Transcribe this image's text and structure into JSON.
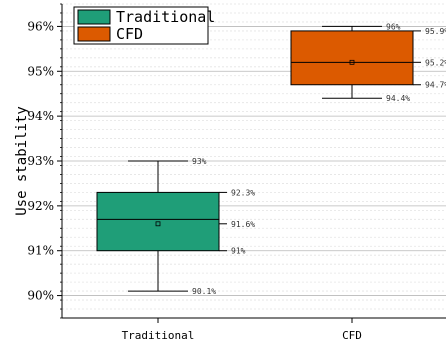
{
  "chart_data": {
    "type": "box",
    "title": "",
    "xlabel": "",
    "ylabel": "Use stability",
    "ylim": [
      89.5,
      96.5
    ],
    "y_unit": "%",
    "yticks": [
      {
        "value": 90,
        "label": "90%"
      },
      {
        "value": 91,
        "label": "91%"
      },
      {
        "value": 92,
        "label": "92%"
      },
      {
        "value": 93,
        "label": "93%"
      },
      {
        "value": 94,
        "label": "94%"
      },
      {
        "value": 95,
        "label": "95%"
      },
      {
        "value": 96,
        "label": "96%"
      }
    ],
    "grid": true,
    "legend_position": "top-left",
    "categories": [
      "Traditional",
      "CFD"
    ],
    "series": [
      {
        "name": "Traditional",
        "color": "#1f9e78",
        "min": 90.1,
        "q1": 91,
        "median": 91.7,
        "mean": 91.6,
        "q3": 92.3,
        "max": 93,
        "labels": {
          "max": "93%",
          "q3": "92.3%",
          "mean": "91.6%",
          "q1": "91%",
          "min": "90.1%"
        }
      },
      {
        "name": "CFD",
        "color": "#dc5a00",
        "min": 94.4,
        "q1": 94.7,
        "median": 95.2,
        "mean": 95.2,
        "q3": 95.9,
        "max": 96,
        "labels": {
          "max": "96%",
          "q3": "95.9%",
          "mean": "95.2%",
          "q1": "94.7%",
          "min": "94.4%"
        }
      }
    ]
  }
}
